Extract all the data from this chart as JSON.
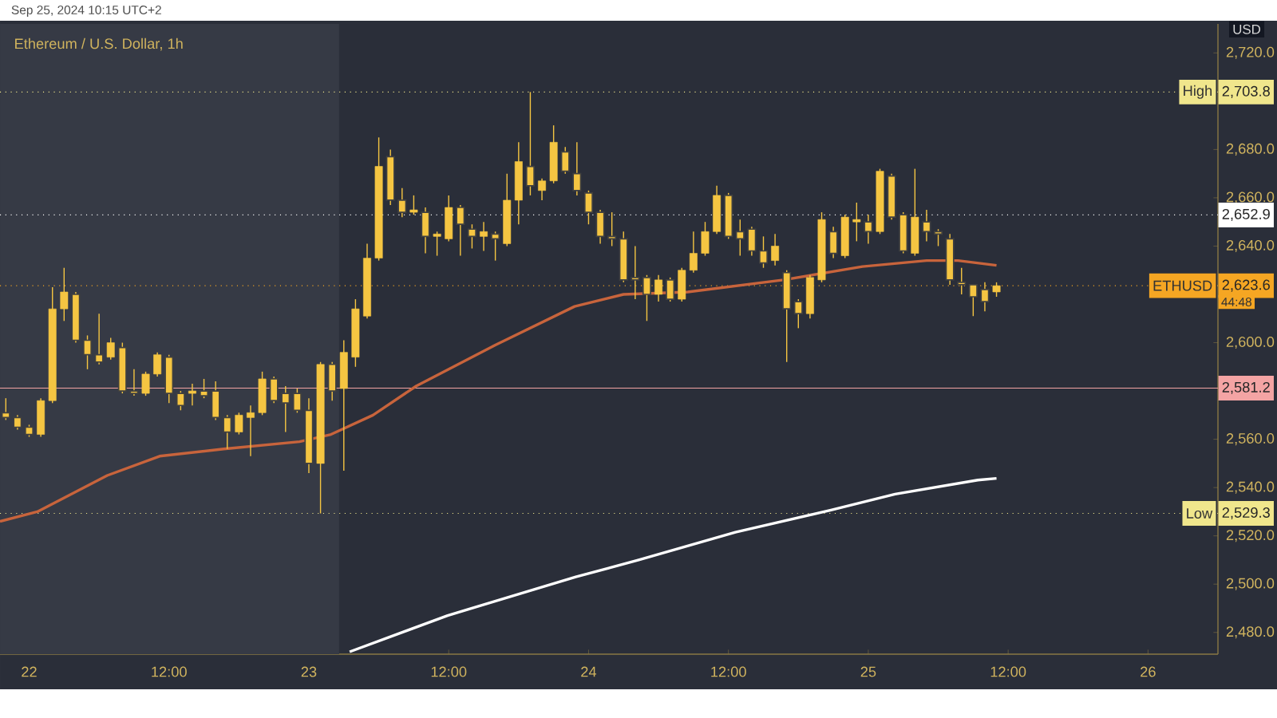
{
  "chart_data": {
    "type": "candlestick",
    "title": "Ethereum / U.S. Dollar, 1h",
    "subtitle": "Sep 25, 2024 10:15 UTC+2",
    "ylabel": "USD",
    "color": "#f5c542",
    "x": [
      "2024-09-21T22:00",
      "2024-09-21T23:00",
      "2024-09-22T00:00",
      "2024-09-22T01:00",
      "2024-09-22T02:00",
      "2024-09-22T03:00",
      "2024-09-22T04:00",
      "2024-09-22T05:00",
      "2024-09-22T06:00",
      "2024-09-22T07:00",
      "2024-09-22T08:00",
      "2024-09-22T09:00",
      "2024-09-22T10:00",
      "2024-09-22T11:00",
      "2024-09-22T12:00",
      "2024-09-22T13:00",
      "2024-09-22T14:00",
      "2024-09-22T15:00",
      "2024-09-22T16:00",
      "2024-09-22T17:00",
      "2024-09-22T18:00",
      "2024-09-22T19:00",
      "2024-09-22T20:00",
      "2024-09-22T21:00",
      "2024-09-22T22:00",
      "2024-09-22T23:00",
      "2024-09-23T00:00",
      "2024-09-23T01:00",
      "2024-09-23T02:00",
      "2024-09-23T03:00",
      "2024-09-23T04:00",
      "2024-09-23T05:00",
      "2024-09-23T06:00",
      "2024-09-23T07:00",
      "2024-09-23T08:00",
      "2024-09-23T09:00",
      "2024-09-23T10:00",
      "2024-09-23T11:00",
      "2024-09-23T12:00",
      "2024-09-23T13:00",
      "2024-09-23T14:00",
      "2024-09-23T15:00",
      "2024-09-23T16:00",
      "2024-09-23T17:00",
      "2024-09-23T18:00",
      "2024-09-23T19:00",
      "2024-09-23T20:00",
      "2024-09-23T21:00",
      "2024-09-23T22:00",
      "2024-09-23T23:00",
      "2024-09-24T00:00",
      "2024-09-24T01:00",
      "2024-09-24T02:00",
      "2024-09-24T03:00",
      "2024-09-24T04:00",
      "2024-09-24T05:00",
      "2024-09-24T06:00",
      "2024-09-24T07:00",
      "2024-09-24T08:00",
      "2024-09-24T09:00",
      "2024-09-24T10:00",
      "2024-09-24T11:00",
      "2024-09-24T12:00",
      "2024-09-24T13:00",
      "2024-09-24T14:00",
      "2024-09-24T15:00",
      "2024-09-24T16:00",
      "2024-09-24T17:00",
      "2024-09-24T18:00",
      "2024-09-24T19:00",
      "2024-09-24T20:00",
      "2024-09-24T21:00",
      "2024-09-24T22:00",
      "2024-09-24T23:00",
      "2024-09-25T00:00",
      "2024-09-25T01:00",
      "2024-09-25T02:00",
      "2024-09-25T03:00",
      "2024-09-25T04:00",
      "2024-09-25T05:00",
      "2024-09-25T06:00",
      "2024-09-25T07:00",
      "2024-09-25T08:00",
      "2024-09-25T09:00",
      "2024-09-25T10:00",
      "2024-09-25T11:00"
    ],
    "ohlc": [
      [
        2571,
        2577,
        2568,
        2569
      ],
      [
        2569,
        2570,
        2564,
        2565
      ],
      [
        2565,
        2566,
        2561,
        2562
      ],
      [
        2562,
        2577,
        2561,
        2576
      ],
      [
        2576,
        2623,
        2575,
        2614
      ],
      [
        2614,
        2631,
        2609,
        2621
      ],
      [
        2620,
        2621,
        2600,
        2601
      ],
      [
        2601,
        2603,
        2589,
        2595
      ],
      [
        2595,
        2612,
        2591,
        2592
      ],
      [
        2594,
        2602,
        2593,
        2600
      ],
      [
        2598,
        2600,
        2579,
        2580
      ],
      [
        2580,
        2589,
        2578,
        2579
      ],
      [
        2579,
        2588,
        2578,
        2587
      ],
      [
        2587,
        2596,
        2586,
        2595
      ],
      [
        2594,
        2595,
        2575,
        2579
      ],
      [
        2579,
        2580,
        2572,
        2574
      ],
      [
        2579,
        2583,
        2574,
        2580
      ],
      [
        2580,
        2585,
        2577,
        2578
      ],
      [
        2580,
        2584,
        2568,
        2569
      ],
      [
        2569,
        2570,
        2556,
        2563
      ],
      [
        2563,
        2571,
        2562,
        2570
      ],
      [
        2569,
        2574,
        2553,
        2571
      ],
      [
        2571,
        2588,
        2570,
        2585
      ],
      [
        2585,
        2586,
        2575,
        2576
      ],
      [
        2579,
        2582,
        2563,
        2575
      ],
      [
        2579,
        2581,
        2571,
        2572
      ],
      [
        2572,
        2577,
        2546,
        2550
      ],
      [
        2550,
        2592,
        2529.3,
        2591
      ],
      [
        2591,
        2592,
        2576,
        2580
      ],
      [
        2581,
        2601,
        2547,
        2596
      ],
      [
        2594,
        2618,
        2590,
        2614
      ],
      [
        2611,
        2641,
        2610,
        2635
      ],
      [
        2635,
        2685,
        2634,
        2673
      ],
      [
        2677,
        2680,
        2657,
        2659
      ],
      [
        2659,
        2664,
        2652,
        2654
      ],
      [
        2654,
        2661,
        2653,
        2655
      ],
      [
        2654,
        2656,
        2637,
        2644
      ],
      [
        2644,
        2646,
        2636,
        2645
      ],
      [
        2643,
        2661,
        2642,
        2656
      ],
      [
        2656,
        2657,
        2636,
        2649
      ],
      [
        2647,
        2649,
        2639,
        2644
      ],
      [
        2644,
        2650,
        2638,
        2646
      ],
      [
        2645,
        2646,
        2634,
        2643
      ],
      [
        2641,
        2670,
        2640,
        2659
      ],
      [
        2659,
        2683,
        2649,
        2675
      ],
      [
        2673,
        2703.8,
        2661,
        2665
      ],
      [
        2663,
        2668,
        2659,
        2667
      ],
      [
        2667,
        2690,
        2666,
        2683
      ],
      [
        2679,
        2681,
        2670,
        2671
      ],
      [
        2670,
        2683,
        2661,
        2663
      ],
      [
        2662,
        2663,
        2649,
        2654
      ],
      [
        2654,
        2655,
        2641,
        2644
      ],
      [
        2644,
        2654,
        2640,
        2643
      ],
      [
        2643,
        2646,
        2625,
        2626
      ],
      [
        2627,
        2640,
        2618,
        2626
      ],
      [
        2627,
        2628,
        2609,
        2620
      ],
      [
        2620,
        2628,
        2617,
        2626
      ],
      [
        2626,
        2627,
        2617,
        2618
      ],
      [
        2618,
        2631,
        2617,
        2630
      ],
      [
        2630,
        2646,
        2629,
        2637
      ],
      [
        2637,
        2650,
        2636,
        2646
      ],
      [
        2646,
        2665,
        2645,
        2661
      ],
      [
        2661,
        2662,
        2643,
        2644
      ],
      [
        2646,
        2651,
        2636,
        2643
      ],
      [
        2647,
        2648,
        2636,
        2638
      ],
      [
        2638,
        2644,
        2631,
        2633
      ],
      [
        2634,
        2645,
        2632,
        2640
      ],
      [
        2629,
        2630,
        2592,
        2614
      ],
      [
        2617,
        2618,
        2606,
        2612
      ],
      [
        2612,
        2628,
        2610,
        2627
      ],
      [
        2626,
        2654,
        2625,
        2651
      ],
      [
        2646,
        2648,
        2635,
        2637
      ],
      [
        2636,
        2653,
        2635,
        2652
      ],
      [
        2650,
        2658,
        2642,
        2651
      ],
      [
        2650,
        2653,
        2641,
        2646
      ],
      [
        2646,
        2672,
        2645,
        2671
      ],
      [
        2669,
        2670,
        2651,
        2652
      ],
      [
        2653,
        2654,
        2637,
        2638
      ],
      [
        2637,
        2672,
        2636,
        2652
      ],
      [
        2650,
        2655,
        2642,
        2646
      ],
      [
        2646,
        2647,
        2640,
        2645
      ],
      [
        2643,
        2645,
        2624,
        2626
      ],
      [
        2625,
        2631,
        2620,
        2624
      ],
      [
        2624,
        2624,
        2611,
        2619
      ],
      [
        2622,
        2625,
        2613,
        2617
      ],
      [
        2621,
        2625,
        2619,
        2623.6
      ]
    ],
    "series": [
      {
        "type": "line",
        "color": "#c8643c",
        "x": [
          "2024-09-21T21:30",
          "2024-09-22T00:42",
          "2024-09-22T06:42",
          "2024-09-22T11:12",
          "2024-09-22T16:42",
          "2024-09-22T23:12",
          "2024-09-23T01:54",
          "2024-09-23T05:30",
          "2024-09-23T09:12",
          "2024-09-23T16:00",
          "2024-09-23T22:48",
          "2024-09-24T03:00",
          "2024-09-24T08:30",
          "2024-09-24T16:42",
          "2024-09-24T23:30",
          "2024-09-25T05:00",
          "2024-09-25T07:42",
          "2024-09-25T11:00"
        ],
        "values": [
          2526,
          2530,
          2545,
          2553,
          2556,
          2559,
          2562,
          2570,
          2582,
          2599,
          2615,
          2620,
          2621,
          2626,
          2631.5,
          2634,
          2634,
          2632
        ]
      },
      {
        "type": "line",
        "color": "#ffffff",
        "x": [
          "2024-09-23T03:30",
          "2024-09-23T11:54",
          "2024-09-23T22:54",
          "2024-09-24T04:18",
          "2024-09-24T12:36",
          "2024-09-24T20:48",
          "2024-09-25T02:18",
          "2024-09-25T09:24",
          "2024-09-25T11:00"
        ],
        "values": [
          2472,
          2487,
          2503,
          2510,
          2521.5,
          2530.7,
          2537.3,
          2543.1,
          2543.8
        ]
      }
    ],
    "xlim": [
      "2024-09-21T21:30",
      "2024-09-26T06:00"
    ],
    "ylim": [
      2471,
      2732
    ],
    "xticks": [
      {
        "value": "2024-09-22T00:00",
        "label": "22"
      },
      {
        "value": "2024-09-22T12:00",
        "label": "12:00"
      },
      {
        "value": "2024-09-23T00:00",
        "label": "23"
      },
      {
        "value": "2024-09-23T12:00",
        "label": "12:00"
      },
      {
        "value": "2024-09-24T00:00",
        "label": "24"
      },
      {
        "value": "2024-09-24T12:00",
        "label": "12:00"
      },
      {
        "value": "2024-09-25T00:00",
        "label": "25"
      },
      {
        "value": "2024-09-25T12:00",
        "label": "12:00"
      },
      {
        "value": "2024-09-26T00:00",
        "label": "26"
      }
    ],
    "yticks": [
      {
        "value": 2480,
        "label": "2,480.0"
      },
      {
        "value": 2500,
        "label": "2,500.0"
      },
      {
        "value": 2520,
        "label": "2,520.0"
      },
      {
        "value": 2540,
        "label": "2,540.0"
      },
      {
        "value": 2560,
        "label": "2,560.0"
      },
      {
        "value": 2600,
        "label": "2,600.0"
      },
      {
        "value": 2640,
        "label": "2,640.0"
      },
      {
        "value": 2660,
        "label": "2,660.0"
      },
      {
        "value": 2680,
        "label": "2,680.0"
      },
      {
        "value": 2720,
        "label": "2,720.0"
      }
    ],
    "ref_lines": [
      {
        "axis": "y",
        "value": 2703.8,
        "label": "High",
        "color": "#f0e68c",
        "line_style": "dotted"
      },
      {
        "axis": "y",
        "value": 2652.9,
        "label": null,
        "color": "#ffffff",
        "line_style": "dotted"
      },
      {
        "axis": "y",
        "value": 2623.6,
        "label": "ETHUSD",
        "color": "#f5a623",
        "line_style": "dotted"
      },
      {
        "axis": "y",
        "value": 2581.2,
        "label": null,
        "color": "#f4a4a4",
        "line_style": "solid"
      },
      {
        "axis": "y",
        "value": 2529.3,
        "label": "Low",
        "color": "#f0e68c",
        "line_style": "dotted"
      }
    ],
    "bands": [
      {
        "axis": "x",
        "from": "2024-09-21T21:30",
        "to": "2024-09-23T02:36",
        "color": "#363a45"
      }
    ],
    "annotations": [
      {
        "text": "2,703.8",
        "y": 2703.8
      },
      {
        "text": "2,652.9",
        "y": 2652.9
      },
      {
        "text": "2,623.6",
        "y": 2623.6
      },
      {
        "text": "2,581.2",
        "y": 2581.2
      },
      {
        "text": "2,529.3",
        "y": 2529.3
      },
      "44:48"
    ]
  }
}
